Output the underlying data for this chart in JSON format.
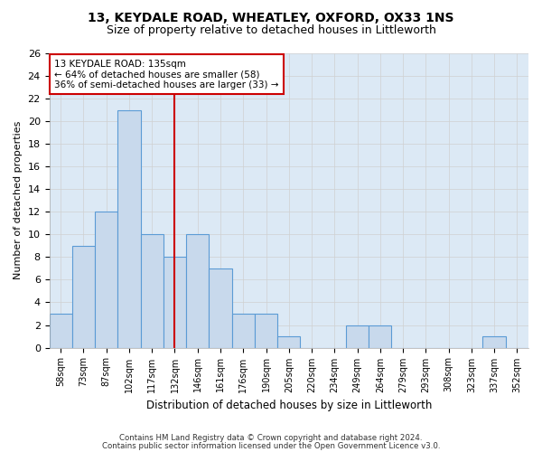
{
  "title1": "13, KEYDALE ROAD, WHEATLEY, OXFORD, OX33 1NS",
  "title2": "Size of property relative to detached houses in Littleworth",
  "xlabel": "Distribution of detached houses by size in Littleworth",
  "ylabel": "Number of detached properties",
  "bin_labels": [
    "58sqm",
    "73sqm",
    "87sqm",
    "102sqm",
    "117sqm",
    "132sqm",
    "146sqm",
    "161sqm",
    "176sqm",
    "190sqm",
    "205sqm",
    "220sqm",
    "234sqm",
    "249sqm",
    "264sqm",
    "279sqm",
    "293sqm",
    "308sqm",
    "323sqm",
    "337sqm",
    "352sqm"
  ],
  "bar_values": [
    3,
    9,
    12,
    21,
    10,
    8,
    10,
    7,
    3,
    3,
    1,
    0,
    0,
    2,
    2,
    0,
    0,
    0,
    0,
    1,
    0
  ],
  "bar_color": "#c8d9ec",
  "bar_edgecolor": "#5b9bd5",
  "highlight_bar_index": 5,
  "highlight_color": "#cc0000",
  "annotation_line1": "13 KEYDALE ROAD: 135sqm",
  "annotation_line2": "← 64% of detached houses are smaller (58)",
  "annotation_line3": "36% of semi-detached houses are larger (33) →",
  "ylim": [
    0,
    26
  ],
  "yticks": [
    0,
    2,
    4,
    6,
    8,
    10,
    12,
    14,
    16,
    18,
    20,
    22,
    24,
    26
  ],
  "grid_color": "#d0d0d0",
  "bg_color": "#ffffff",
  "plot_bg_color": "#dce9f5",
  "footer1": "Contains HM Land Registry data © Crown copyright and database right 2024.",
  "footer2": "Contains public sector information licensed under the Open Government Licence v3.0."
}
